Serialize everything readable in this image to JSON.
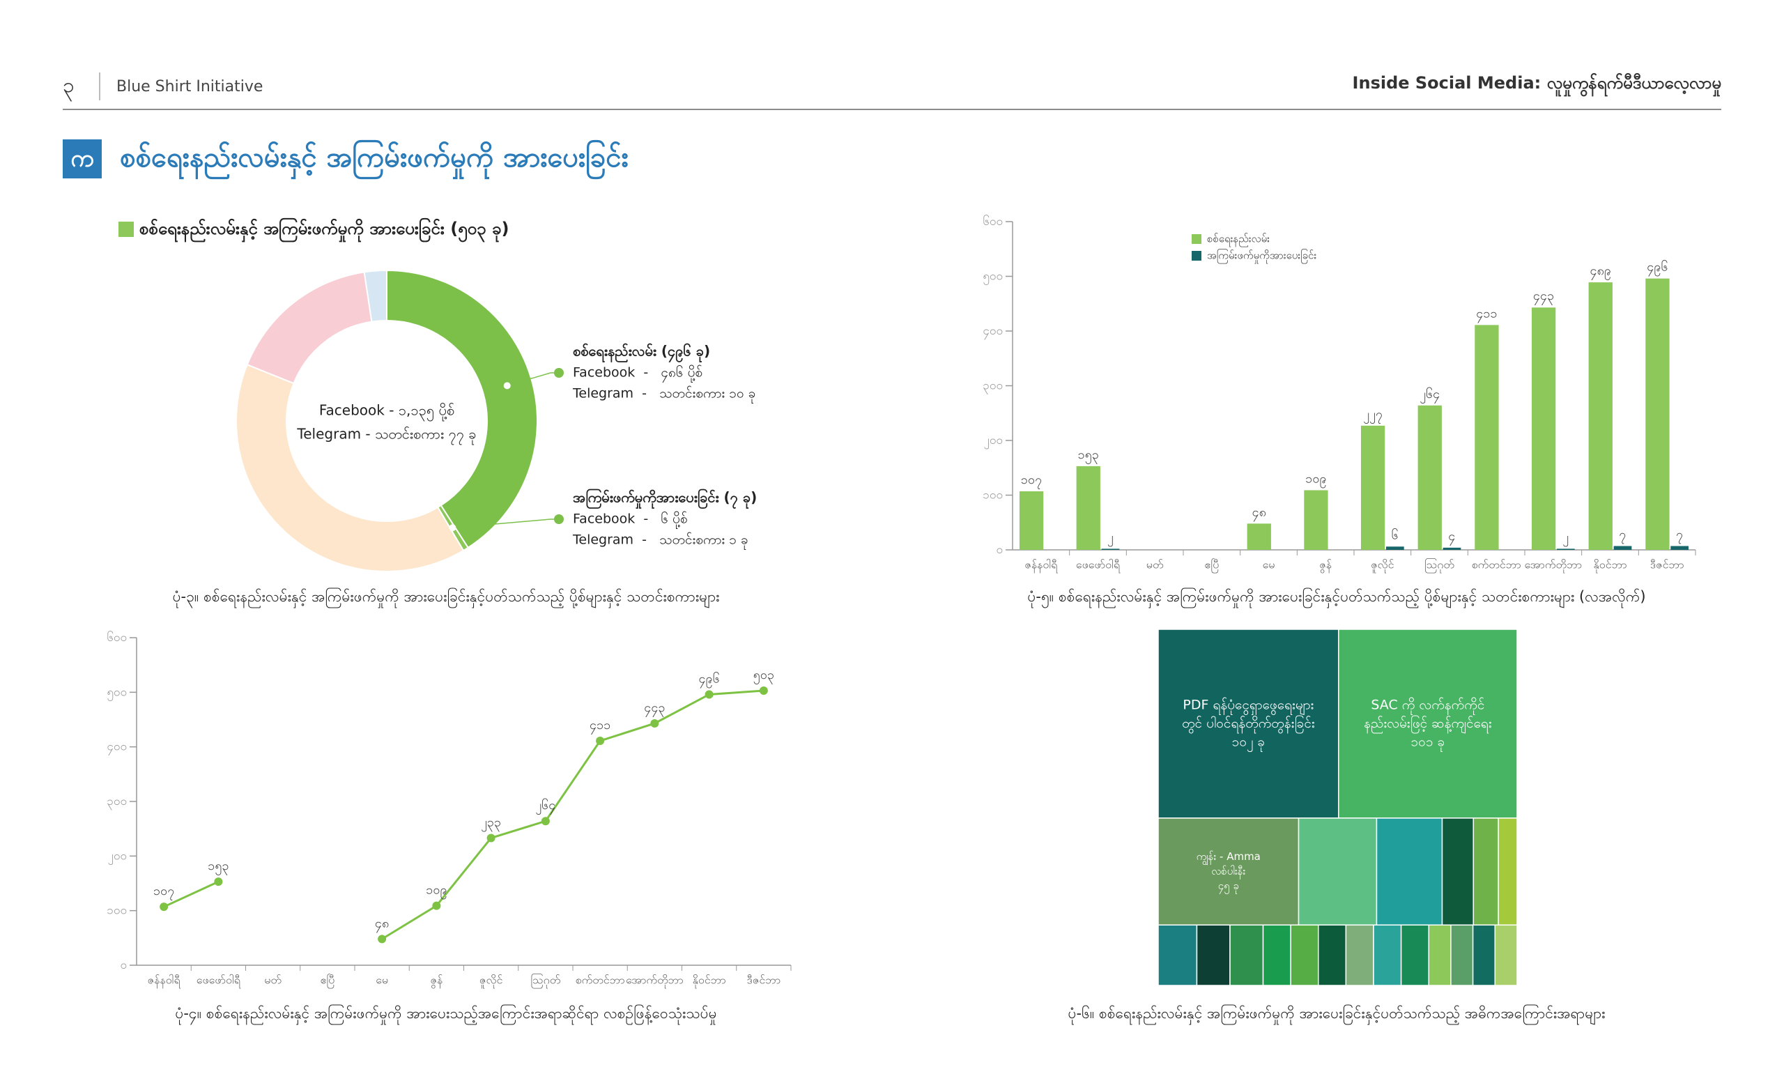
{
  "header": {
    "page_number": "၃",
    "publisher": "Blue Shirt Initiative",
    "report_title": "Inside Social Media: လူမှုကွန်ရက်မီဒီယာလေ့လာမှု"
  },
  "section": {
    "letter": "က",
    "title": "စစ်ရေးနည်းလမ်းနှင့် အကြမ်းဖက်မှုကို အားပေးခြင်း"
  },
  "chart_data": [
    {
      "type": "pie",
      "legend": "စစ်ရေးနည်းလမ်းနှင့် အကြမ်းဖက်မှုကို အားပေးခြင်း (၅၀၃ ခု)",
      "legend_color": "#8cc85a",
      "center_text": [
        "Facebook - ၁,၁၃၅ ပို့စ်",
        "Telegram - သတင်းစကား ၇၇ ခု"
      ],
      "values": [
        496,
        7,
        480,
        200,
        29
      ],
      "colors": [
        "#7cc04a",
        "#8cc85a",
        "#fde6cc",
        "#f8cdd4",
        "#d6e6f2"
      ],
      "annotations": [
        {
          "title": "စစ်ရေးနည်းလမ်း (၄၉၆ ခု)",
          "lines": [
            "Facebook  -   ၄၈၆ ပို့စ်",
            "Telegram  -   သတင်းစကား ၁၀ ခု"
          ]
        },
        {
          "title": "အကြမ်းဖက်မှုကိုအားပေးခြင်း (၇ ခု)",
          "lines": [
            "Facebook  -   ၆ ပို့စ်",
            "Telegram  -   သတင်းစကား ၁ ခု"
          ]
        }
      ],
      "caption": "ပုံ-၃။ စစ်ရေးနည်းလမ်းနှင့် အကြမ်းဖက်မှုကို အားပေးခြင်းနှင့်ပတ်သက်သည့် ပို့စ်များနှင့် သတင်းစကားများ"
    },
    {
      "type": "bar",
      "categories": [
        "ဇန်နဝါရီ",
        "ဖေဖော်ဝါရီ",
        "မတ်",
        "ဧပြီ",
        "မေ",
        "ဇွန်",
        "ဇူလိုင်",
        "ဩဂုတ်",
        "စက်တင်ဘာ",
        "အောက်တိုဘာ",
        "နိုဝင်ဘာ",
        "ဒီဇင်ဘာ"
      ],
      "series": [
        {
          "name": "စစ်ရေးနည်းလမ်း",
          "color": "#8cc85a",
          "values": [
            107,
            153,
            null,
            null,
            48,
            109,
            227,
            264,
            411,
            443,
            489,
            496
          ],
          "value_labels": [
            "၁၀၇",
            "၁၅၃",
            null,
            null,
            "၄၈",
            "၁၀၉",
            "၂၂၇",
            "၂၆၄",
            "၄၁၁",
            "၄၄၃",
            "၄၈၉",
            "၄၉၆"
          ]
        },
        {
          "name": "အကြမ်းဖက်မှုကိုအားပေးခြင်း",
          "color": "#17676a",
          "values": [
            null,
            2,
            null,
            null,
            null,
            null,
            6,
            4,
            null,
            2,
            7,
            7
          ],
          "value_labels": [
            null,
            "၂",
            null,
            null,
            null,
            null,
            "၆",
            "၄",
            null,
            "၂",
            "၇",
            "၇"
          ]
        }
      ],
      "ylim": [
        0,
        600
      ],
      "yticks": [
        {
          "value": 0,
          "label": "၀"
        },
        {
          "value": 100,
          "label": "၁၀၀"
        },
        {
          "value": 200,
          "label": "၂၀၀"
        },
        {
          "value": 300,
          "label": "၃၀၀"
        },
        {
          "value": 400,
          "label": "၄၀၀"
        },
        {
          "value": 500,
          "label": "၅၀၀"
        },
        {
          "value": 600,
          "label": "၆၀၀"
        }
      ],
      "caption": "ပုံ-၅။ စစ်ရေးနည်းလမ်းနှင့် အကြမ်းဖက်မှုကို အားပေးခြင်းနှင့်ပတ်သက်သည့် ပို့စ်များနှင့် သတင်းစကားများ (လအလိုက်)"
    },
    {
      "type": "line",
      "categories": [
        "ဇန်နဝါရီ",
        "ဖေဖော်ဝါရီ",
        "မတ်",
        "ဧပြီ",
        "မေ",
        "ဇွန်",
        "ဇူလိုင်",
        "ဩဂုတ်",
        "စက်တင်ဘာ",
        "အောက်တိုဘာ",
        "နိုဝင်ဘာ",
        "ဒီဇင်ဘာ"
      ],
      "color": "#7dc242",
      "values": [
        107,
        153,
        null,
        null,
        48,
        109,
        233,
        264,
        411,
        443,
        496,
        503
      ],
      "value_labels": [
        "၁၀၇",
        "၁၅၃",
        null,
        null,
        "၄၈",
        "၁၀၉",
        "၂၃၃",
        "၂၆၄",
        "၄၁၁",
        "၄၄၃",
        "၄၉၆",
        "၅၀၃"
      ],
      "ylim": [
        0,
        600
      ],
      "yticks": [
        {
          "value": 0,
          "label": "၀"
        },
        {
          "value": 100,
          "label": "၁၀၀"
        },
        {
          "value": 200,
          "label": "၂၀၀"
        },
        {
          "value": 300,
          "label": "၃၀၀"
        },
        {
          "value": 400,
          "label": "၄၀၀"
        },
        {
          "value": 500,
          "label": "၅၀၀"
        },
        {
          "value": 600,
          "label": "၆၀၀"
        }
      ],
      "caption": "ပုံ-၄။ စစ်ရေးနည်းလမ်းနှင့် အကြမ်းဖက်မှုကို အားပေးသည့်အကြောင်းအရာဆိုင်ရာ လစဉ်ဖြန့်ဝေသုံးသပ်မှု"
    },
    {
      "type": "treemap",
      "rows": [
        [
          {
            "value": 102,
            "color": "#12655f",
            "label": [
              "PDF ရန်ပုံငွေရှာဖွေရေးများ",
              "တွင် ပါဝင်ရန်တိုက်တွန်းခြင်း"
            ],
            "value_label": "၁၀၂ ခု"
          },
          {
            "value": 101,
            "color": "#47b464",
            "label": [
              "SAC ကို လက်နက်ကိုင်",
              "နည်းလမ်းဖြင့် ဆန့်ကျင်ရေး"
            ],
            "value_label": "၁၀၁ ခု"
          }
        ],
        [
          {
            "value": 45,
            "color": "#6a9a5d",
            "label": [
              "ကျွန်း - Amma",
              "လစ်ပါးနီး"
            ],
            "value_label": "၄၅ ခု"
          },
          {
            "value": 25,
            "color": "#5dbf84"
          },
          {
            "value": 21,
            "color": "#1f9e9b"
          },
          {
            "value": 10,
            "color": "#0f5a3a"
          },
          {
            "value": 8,
            "color": "#6fb24a"
          },
          {
            "value": 6,
            "color": "#a4c93a"
          }
        ],
        [
          {
            "value": 7,
            "color": "#1b7f82"
          },
          {
            "value": 6,
            "color": "#0d3f34"
          },
          {
            "value": 6,
            "color": "#2f8f4c"
          },
          {
            "value": 5,
            "color": "#1a9c4e"
          },
          {
            "value": 5,
            "color": "#56ad45"
          },
          {
            "value": 5,
            "color": "#0c5b3b"
          },
          {
            "value": 5,
            "color": "#7fae7a"
          },
          {
            "value": 5,
            "color": "#2aa39a"
          },
          {
            "value": 5,
            "color": "#178a55"
          },
          {
            "value": 4,
            "color": "#8cc85a"
          },
          {
            "value": 4,
            "color": "#5a9f68"
          },
          {
            "value": 4,
            "color": "#126c60"
          },
          {
            "value": 4,
            "color": "#a9cf6a"
          }
        ]
      ],
      "caption": "ပုံ-၆။ စစ်ရေးနည်းလမ်းနှင့် အကြမ်းဖက်မှုကို အားပေးခြင်းနှင့်ပတ်သက်သည့် အဓိကအကြောင်းအရာများ"
    }
  ]
}
